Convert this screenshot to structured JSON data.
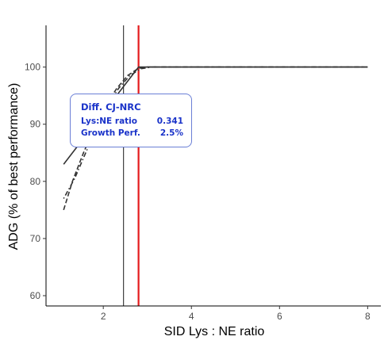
{
  "chart_data": {
    "type": "line",
    "title": "",
    "xlabel": "SID Lys : NE ratio",
    "ylabel": "ADG (% of best performance)",
    "xlim": [
      0.7,
      8.3
    ],
    "ylim": [
      58.2,
      107.3
    ],
    "xticks": [
      2,
      4,
      6,
      8
    ],
    "yticks": [
      60,
      70,
      80,
      90,
      100
    ],
    "grid": false,
    "legend": "none",
    "series": [
      {
        "values": [
          [
            1.1,
            83
          ],
          [
            2.8,
            100
          ],
          [
            8.0,
            100
          ]
        ],
        "line_style": "solid",
        "color": "#333333"
      },
      {
        "values": [
          [
            1.1,
            75
          ],
          [
            1.3,
            80
          ],
          [
            1.55,
            85
          ],
          [
            1.8,
            89.5
          ],
          [
            2.05,
            93.2
          ],
          [
            2.3,
            96.2
          ],
          [
            2.55,
            98.5
          ],
          [
            2.8,
            99.8
          ],
          [
            3.0,
            100
          ],
          [
            8.0,
            100
          ]
        ],
        "line_style": "dashed",
        "color": "#333333"
      },
      {
        "values": [
          [
            1.1,
            77
          ],
          [
            1.35,
            80.5
          ],
          [
            1.6,
            85
          ],
          [
            1.85,
            89.5
          ],
          [
            2.1,
            93.3
          ],
          [
            2.35,
            96.3
          ],
          [
            2.6,
            98.5
          ],
          [
            2.85,
            99.7
          ],
          [
            3.1,
            100
          ],
          [
            8.0,
            100
          ]
        ],
        "line_style": "dotdash",
        "color": "#333333"
      }
    ],
    "vlines": [
      {
        "x": 2.46,
        "color": "#000000",
        "style": "thin"
      },
      {
        "x": 2.8,
        "color": "#e41a1c",
        "style": "thick"
      }
    ],
    "annotation": {
      "title": "Diff. CJ-NRC",
      "rows": [
        {
          "label": "Lys:NE ratio",
          "value": "0.341"
        },
        {
          "label": "Growth Perf.",
          "value": "2.5%"
        }
      ],
      "color": "#1a33c9"
    }
  }
}
